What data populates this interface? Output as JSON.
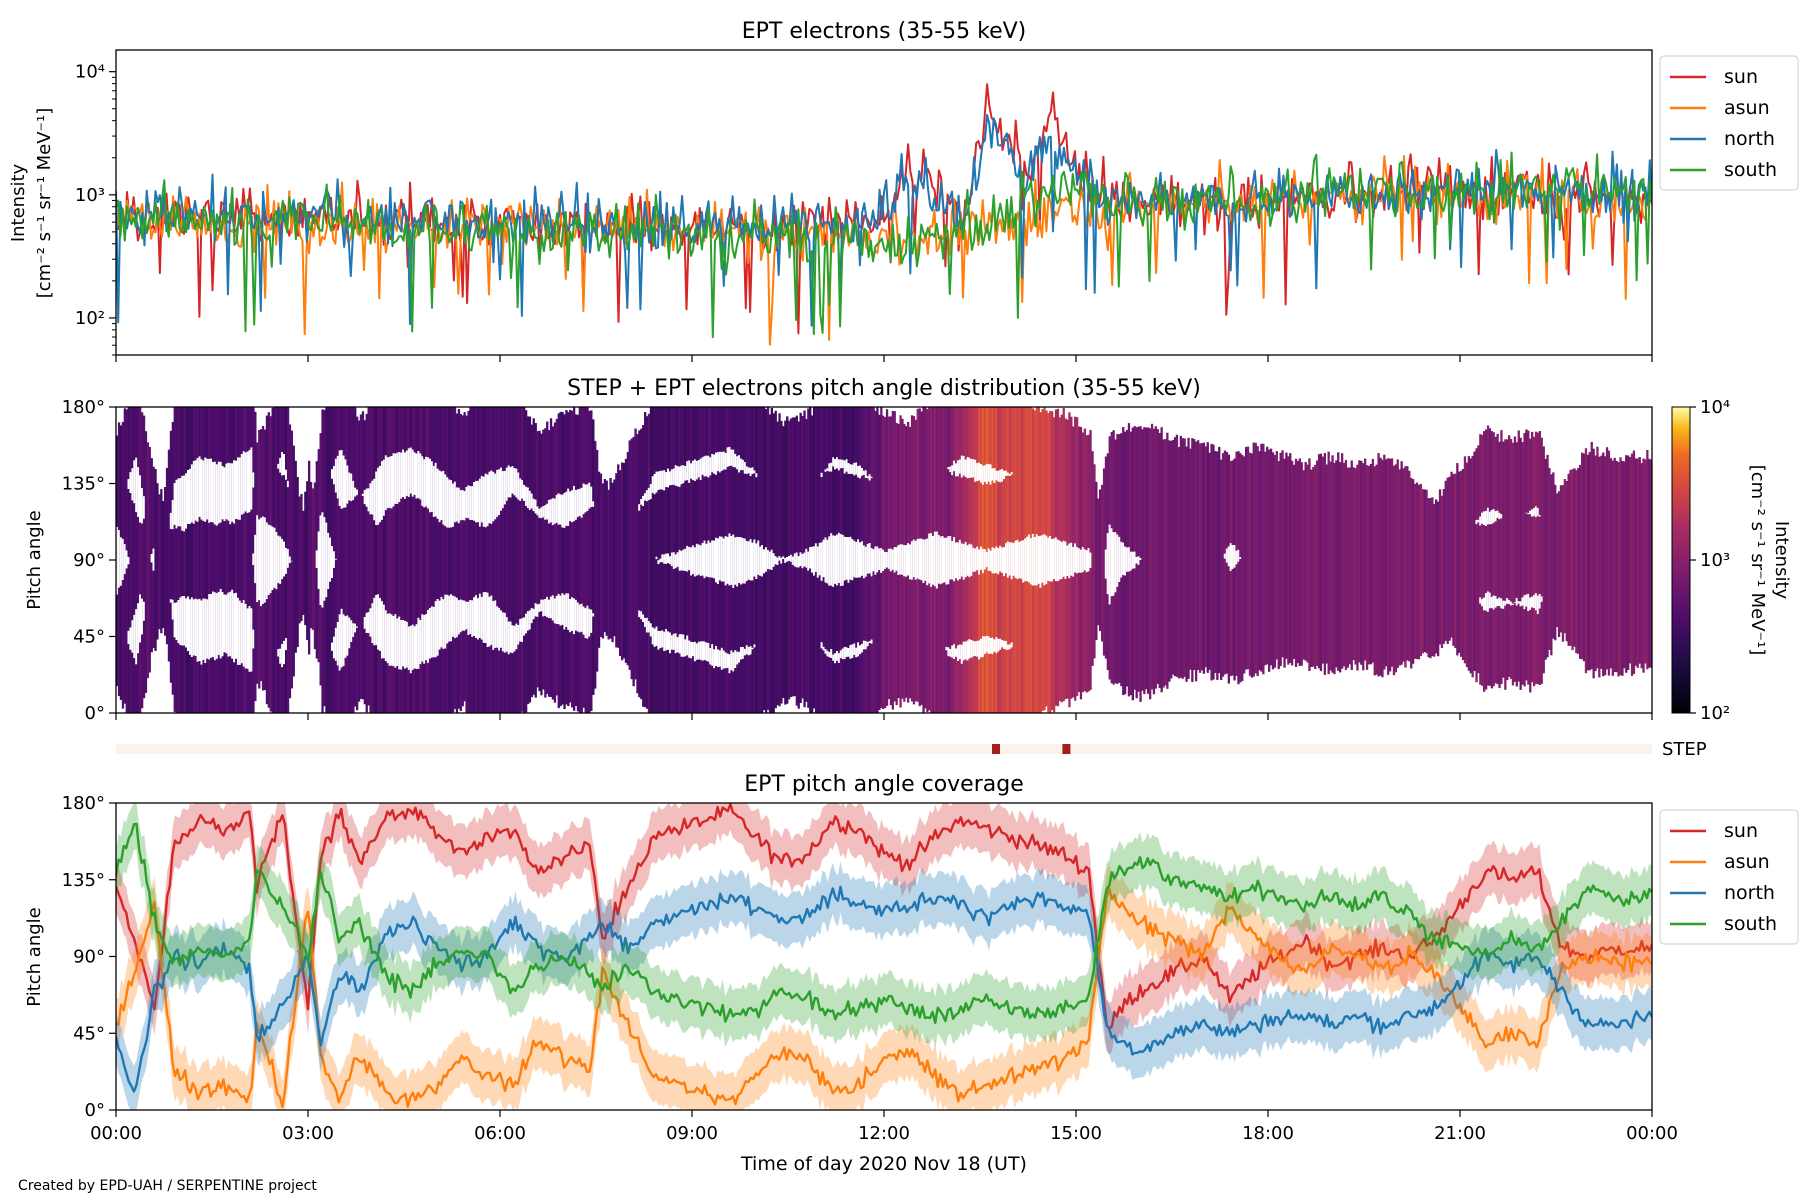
{
  "footer": "Created by EPD-UAH / SERPENTINE project",
  "chart_data": [
    {
      "type": "line",
      "title": "EPT electrons (35-55 keV)",
      "ylabel_line1": "Intensity",
      "ylabel_line2": "[cm⁻² s⁻¹ sr⁻¹ MeV⁻¹]",
      "yscale": "log",
      "ylim": [
        50,
        15000
      ],
      "yticks": [
        {
          "value": 100,
          "label": "10²"
        },
        {
          "value": 1000,
          "label": "10³"
        },
        {
          "value": 10000,
          "label": "10⁴"
        }
      ],
      "xlim": [
        0,
        24
      ],
      "legend_position": "right-outside-top",
      "series": [
        {
          "name": "sun",
          "color": "#d62728",
          "x": [
            0,
            0.5,
            1,
            1.5,
            2,
            2.5,
            3,
            3.5,
            4,
            4.5,
            5,
            5.5,
            6,
            6.5,
            7,
            7.5,
            8,
            8.5,
            9,
            9.5,
            10,
            10.5,
            11,
            11.5,
            12,
            12.3,
            12.6,
            13,
            13.3,
            13.6,
            13.8,
            14,
            14.3,
            14.6,
            14.8,
            15,
            15.3,
            15.6,
            16,
            16.5,
            17,
            17.5,
            18,
            18.5,
            19,
            19.5,
            20,
            20.5,
            21,
            21.5,
            22,
            22.5,
            23,
            23.5,
            24
          ],
          "y": [
            700,
            650,
            680,
            700,
            640,
            620,
            660,
            620,
            600,
            630,
            610,
            600,
            620,
            580,
            560,
            590,
            570,
            560,
            560,
            560,
            560,
            570,
            580,
            600,
            620,
            1600,
            1400,
            900,
            600,
            5500,
            3000,
            2500,
            1500,
            5000,
            2500,
            1500,
            1000,
            900,
            850,
            800,
            820,
            850,
            900,
            950,
            1000,
            1000,
            1050,
            1100,
            1000,
            1000,
            1300,
            1050,
            1000,
            950,
            900
          ]
        },
        {
          "name": "asun",
          "color": "#ff7f0e",
          "x": [
            0,
            1,
            2,
            3,
            4,
            5,
            6,
            7,
            8,
            9,
            10,
            11,
            11.5,
            12,
            12.5,
            13,
            13.5,
            14,
            14.5,
            15,
            15.5,
            16,
            17,
            18,
            19,
            20,
            21,
            22,
            23,
            24
          ],
          "y": [
            650,
            600,
            550,
            580,
            560,
            540,
            560,
            520,
            520,
            500,
            480,
            480,
            470,
            450,
            450,
            460,
            480,
            550,
            700,
            900,
            850,
            820,
            850,
            900,
            1000,
            1000,
            950,
            1000,
            950,
            900
          ]
        },
        {
          "name": "north",
          "color": "#1f77b4",
          "x": [
            0,
            1,
            2,
            3,
            4,
            5,
            6,
            7,
            8,
            9,
            10,
            11,
            12,
            12.3,
            12.6,
            13,
            13.3,
            13.6,
            13.8,
            14,
            14.3,
            14.6,
            14.8,
            15,
            15.5,
            16,
            17,
            18,
            19,
            20,
            21,
            22,
            23,
            24
          ],
          "y": [
            700,
            680,
            650,
            660,
            620,
            600,
            620,
            580,
            560,
            560,
            560,
            580,
            620,
            1200,
            1100,
            800,
            600,
            4000,
            2800,
            2000,
            1400,
            3000,
            2000,
            1300,
            900,
            850,
            850,
            900,
            1050,
            1050,
            1050,
            1100,
            1100,
            1000
          ]
        },
        {
          "name": "south",
          "color": "#2ca02c",
          "x": [
            0,
            1,
            2,
            3,
            4,
            5,
            6,
            7,
            8,
            9,
            10,
            11,
            12,
            12.5,
            13,
            13.5,
            14,
            14.5,
            15,
            15.5,
            16,
            17,
            18,
            19,
            20,
            21,
            22,
            23,
            24
          ],
          "y": [
            650,
            600,
            580,
            580,
            560,
            540,
            520,
            500,
            480,
            470,
            460,
            450,
            420,
            440,
            470,
            520,
            700,
            1000,
            1200,
            900,
            850,
            850,
            900,
            1050,
            1100,
            1050,
            1100,
            1150,
            1100
          ]
        }
      ]
    },
    {
      "type": "heatmap",
      "title": "STEP + EPT electrons pitch angle distribution (35-55 keV)",
      "ylabel": "Pitch angle",
      "ylim": [
        0,
        180
      ],
      "yticks": [
        {
          "value": 0,
          "label": "0°"
        },
        {
          "value": 45,
          "label": "45°"
        },
        {
          "value": 90,
          "label": "90°"
        },
        {
          "value": 135,
          "label": "135°"
        },
        {
          "value": 180,
          "label": "180°"
        }
      ],
      "xlim": [
        0,
        24
      ],
      "colorbar": {
        "label_line1": "Intensity",
        "label_line2": "[cm⁻² s⁻¹ sr⁻¹ MeV⁻¹]",
        "scale": "log",
        "range": [
          100,
          10000
        ],
        "ticks": [
          {
            "value": 100,
            "label": "10²"
          },
          {
            "value": 1000,
            "label": "10³"
          },
          {
            "value": 10000,
            "label": "10⁴"
          }
        ],
        "colormap": "inferno"
      },
      "intensity_profile": {
        "x": [
          0,
          2,
          4,
          6,
          8,
          10,
          11.5,
          12,
          13,
          13.6,
          13.9,
          14.5,
          14.9,
          15.3,
          16,
          18,
          20,
          22,
          24
        ],
        "y": [
          400,
          420,
          430,
          400,
          380,
          390,
          360,
          700,
          900,
          3500,
          2500,
          3200,
          1500,
          800,
          700,
          750,
          800,
          850,
          850
        ]
      }
    },
    {
      "type": "bar",
      "label": "STEP",
      "xlim": [
        0,
        24
      ],
      "marks": [
        13.75,
        14.85
      ],
      "mark_color": "#a51d1d",
      "band_color": "#fdf1ec"
    },
    {
      "type": "area",
      "title": "EPT pitch angle coverage",
      "ylabel": "Pitch angle",
      "xlabel": "Time of day 2020 Nov 18 (UT)",
      "ylim": [
        0,
        180
      ],
      "yticks": [
        {
          "value": 0,
          "label": "0°"
        },
        {
          "value": 45,
          "label": "45°"
        },
        {
          "value": 90,
          "label": "90°"
        },
        {
          "value": 135,
          "label": "135°"
        },
        {
          "value": 180,
          "label": "180°"
        }
      ],
      "xlim": [
        0,
        24
      ],
      "xticks": [
        {
          "value": 0,
          "label": "00:00"
        },
        {
          "value": 3,
          "label": "03:00"
        },
        {
          "value": 6,
          "label": "06:00"
        },
        {
          "value": 9,
          "label": "09:00"
        },
        {
          "value": 12,
          "label": "12:00"
        },
        {
          "value": 15,
          "label": "15:00"
        },
        {
          "value": 18,
          "label": "18:00"
        },
        {
          "value": 21,
          "label": "21:00"
        },
        {
          "value": 24,
          "label": "00:00"
        }
      ],
      "legend_position": "right-outside-top",
      "band_halfwidth": 15,
      "series": [
        {
          "name": "sun",
          "color": "#d62728",
          "x": [
            0,
            0.3,
            0.6,
            0.9,
            1.3,
            1.7,
            2.1,
            2.2,
            2.6,
            3.0,
            3.2,
            3.5,
            3.8,
            4.2,
            4.6,
            5.0,
            5.4,
            5.8,
            6.2,
            6.6,
            7.0,
            7.4,
            7.6,
            8.0,
            8.4,
            8.8,
            9.2,
            9.6,
            10.0,
            10.4,
            10.8,
            11.2,
            11.6,
            12.0,
            12.4,
            12.8,
            13.2,
            13.6,
            14.0,
            14.4,
            14.8,
            15.2,
            15.5,
            15.7,
            16.0,
            16.5,
            17.0,
            17.4,
            17.8,
            18.2,
            18.6,
            19.0,
            19.4,
            19.8,
            20.2,
            20.6,
            21.0,
            21.4,
            21.8,
            22.2,
            22.6,
            23.0,
            23.5,
            24
          ],
          "y": [
            130,
            100,
            60,
            155,
            170,
            165,
            175,
            130,
            175,
            60,
            150,
            175,
            145,
            170,
            175,
            165,
            150,
            160,
            165,
            140,
            150,
            155,
            100,
            130,
            160,
            165,
            170,
            175,
            160,
            145,
            150,
            170,
            165,
            150,
            145,
            160,
            170,
            165,
            160,
            155,
            150,
            140,
            45,
            60,
            70,
            80,
            90,
            65,
            80,
            90,
            100,
            85,
            90,
            95,
            90,
            100,
            120,
            140,
            135,
            140,
            95,
            90,
            95,
            95
          ]
        },
        {
          "name": "asun",
          "color": "#ff7f0e",
          "x": [
            0,
            0.3,
            0.6,
            0.9,
            1.3,
            1.7,
            2.1,
            2.2,
            2.6,
            3.0,
            3.2,
            3.5,
            3.8,
            4.2,
            4.6,
            5.0,
            5.4,
            5.8,
            6.2,
            6.6,
            7.0,
            7.4,
            7.6,
            8.0,
            8.4,
            8.8,
            9.2,
            9.6,
            10.0,
            10.4,
            10.8,
            11.2,
            11.6,
            12.0,
            12.4,
            12.8,
            13.2,
            13.6,
            14.0,
            14.4,
            14.8,
            15.2,
            15.5,
            15.7,
            16.0,
            16.5,
            17.0,
            17.4,
            17.8,
            18.2,
            18.6,
            19.0,
            19.4,
            19.8,
            20.2,
            20.6,
            21.0,
            21.4,
            21.8,
            22.2,
            22.6,
            23.0,
            23.5,
            24
          ],
          "y": [
            50,
            80,
            120,
            25,
            10,
            15,
            5,
            50,
            5,
            120,
            30,
            5,
            35,
            10,
            5,
            15,
            30,
            20,
            15,
            40,
            30,
            25,
            80,
            50,
            20,
            15,
            10,
            5,
            20,
            35,
            30,
            10,
            15,
            30,
            35,
            20,
            10,
            15,
            20,
            25,
            30,
            40,
            130,
            120,
            110,
            100,
            90,
            120,
            100,
            90,
            80,
            95,
            90,
            85,
            90,
            80,
            60,
            40,
            45,
            40,
            85,
            90,
            85,
            85
          ]
        },
        {
          "name": "north",
          "color": "#1f77b4",
          "x": [
            0,
            0.3,
            0.6,
            0.9,
            1.3,
            1.7,
            2.1,
            2.2,
            2.6,
            3.0,
            3.2,
            3.5,
            3.8,
            4.2,
            4.6,
            5.0,
            5.4,
            5.8,
            6.2,
            6.6,
            7.0,
            7.4,
            7.6,
            8.0,
            8.4,
            8.8,
            9.2,
            9.6,
            10.0,
            10.4,
            10.8,
            11.2,
            11.6,
            12.0,
            12.4,
            12.8,
            13.2,
            13.6,
            14.0,
            14.4,
            14.8,
            15.2,
            15.5,
            15.7,
            16.0,
            16.5,
            17.0,
            17.4,
            17.8,
            18.2,
            18.6,
            19.0,
            19.4,
            19.8,
            20.2,
            20.6,
            21.0,
            21.4,
            21.8,
            22.2,
            22.6,
            23.0,
            23.5,
            24
          ],
          "y": [
            40,
            10,
            70,
            90,
            85,
            95,
            80,
            40,
            60,
            90,
            40,
            80,
            70,
            100,
            110,
            95,
            85,
            90,
            110,
            95,
            90,
            100,
            110,
            95,
            110,
            115,
            120,
            125,
            120,
            110,
            115,
            125,
            120,
            115,
            120,
            125,
            120,
            115,
            120,
            125,
            120,
            115,
            45,
            40,
            35,
            45,
            50,
            45,
            50,
            55,
            55,
            50,
            55,
            50,
            55,
            60,
            75,
            90,
            85,
            90,
            70,
            50,
            50,
            55
          ]
        },
        {
          "name": "south",
          "color": "#2ca02c",
          "x": [
            0,
            0.3,
            0.6,
            0.9,
            1.3,
            1.7,
            2.1,
            2.2,
            2.6,
            3.0,
            3.2,
            3.5,
            3.8,
            4.2,
            4.6,
            5.0,
            5.4,
            5.8,
            6.2,
            6.6,
            7.0,
            7.4,
            7.6,
            8.0,
            8.4,
            8.8,
            9.2,
            9.6,
            10.0,
            10.4,
            10.8,
            11.2,
            11.6,
            12.0,
            12.4,
            12.8,
            13.2,
            13.6,
            14.0,
            14.4,
            14.8,
            15.2,
            15.5,
            15.7,
            16.0,
            16.5,
            17.0,
            17.4,
            17.8,
            18.2,
            18.6,
            19.0,
            19.4,
            19.8,
            20.2,
            20.6,
            21.0,
            21.4,
            21.8,
            22.2,
            22.6,
            23.0,
            23.5,
            24
          ],
          "y": [
            140,
            170,
            110,
            85,
            95,
            90,
            100,
            140,
            120,
            90,
            140,
            100,
            110,
            80,
            70,
            85,
            95,
            90,
            70,
            85,
            90,
            80,
            70,
            85,
            70,
            65,
            60,
            55,
            60,
            70,
            65,
            55,
            60,
            65,
            60,
            55,
            60,
            65,
            60,
            55,
            60,
            65,
            135,
            140,
            145,
            135,
            130,
            125,
            130,
            125,
            120,
            125,
            120,
            125,
            115,
            100,
            95,
            90,
            100,
            95,
            110,
            130,
            125,
            125
          ]
        }
      ]
    }
  ]
}
